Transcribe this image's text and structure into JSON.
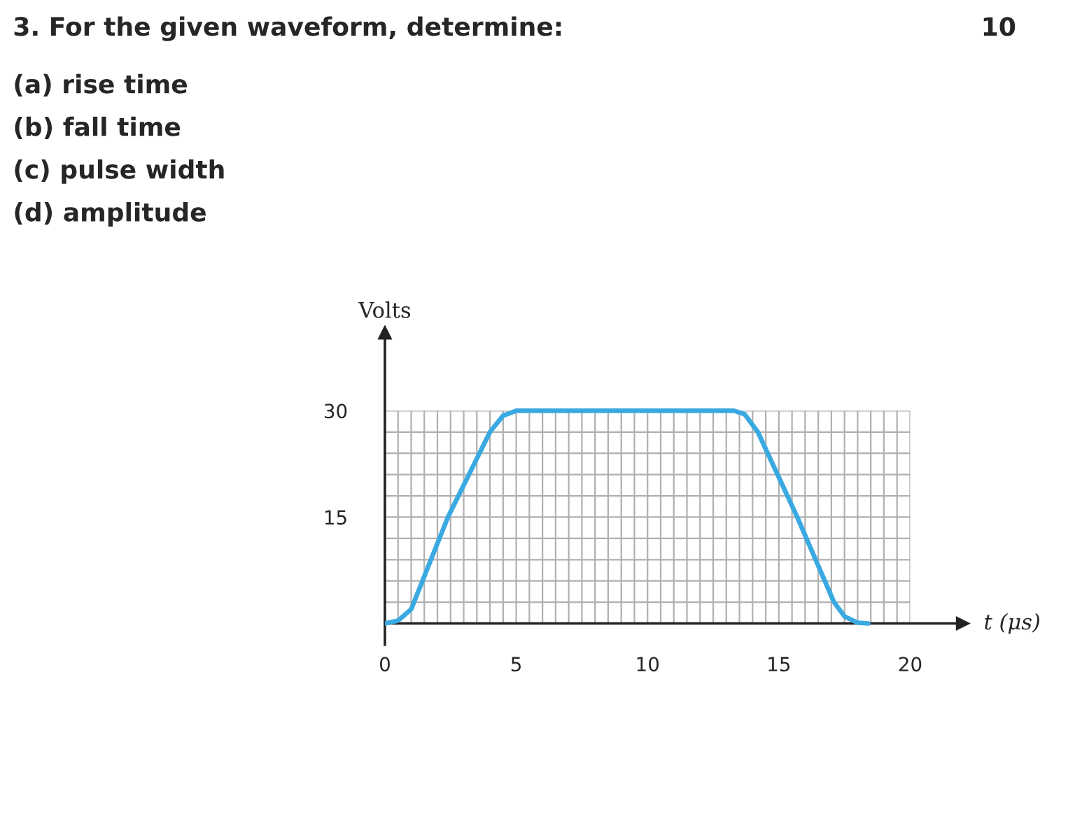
{
  "chart_data": {
    "type": "line",
    "title": "3. For the given waveform, determine:",
    "annotations": [
      "10",
      "(a) rise time",
      "(b) fall time",
      "(c) pulse width",
      "(d) amplitude"
    ],
    "xlabel": "t (μs)",
    "ylabel": "Volts",
    "series": [
      {
        "color": "#3aa9e2",
        "x": [
          0,
          0.5,
          1,
          2.4,
          4,
          4.5,
          5,
          13.3,
          13.7,
          14.2,
          15.7,
          17.1,
          17.5,
          18,
          18.4
        ],
        "values": [
          0,
          0.4,
          2,
          15,
          27,
          29.3,
          30,
          30,
          29.5,
          27,
          15,
          3,
          1,
          0.1,
          0
        ]
      }
    ],
    "xlim": [
      0,
      22
    ],
    "ylim": [
      -3,
      41
    ],
    "xticks": [
      0,
      {
        "value": 0.5,
        "label": null
      },
      {
        "value": 1,
        "label": null
      },
      {
        "value": 1.5,
        "label": null
      },
      {
        "value": 2,
        "label": null
      },
      {
        "value": 2.5,
        "label": null
      },
      {
        "value": 3,
        "label": null
      },
      {
        "value": 3.5,
        "label": null
      },
      {
        "value": 4,
        "label": null
      },
      {
        "value": 4.5,
        "label": null
      },
      5,
      {
        "value": 5.5,
        "label": null
      },
      {
        "value": 6,
        "label": null
      },
      {
        "value": 6.5,
        "label": null
      },
      {
        "value": 7,
        "label": null
      },
      {
        "value": 7.5,
        "label": null
      },
      {
        "value": 8,
        "label": null
      },
      {
        "value": 8.5,
        "label": null
      },
      {
        "value": 9,
        "label": null
      },
      {
        "value": 9.5,
        "label": null
      },
      10,
      {
        "value": 10.5,
        "label": null
      },
      {
        "value": 11,
        "label": null
      },
      {
        "value": 11.5,
        "label": null
      },
      {
        "value": 12,
        "label": null
      },
      {
        "value": 12.5,
        "label": null
      },
      {
        "value": 13,
        "label": null
      },
      {
        "value": 13.5,
        "label": null
      },
      {
        "value": 14,
        "label": null
      },
      {
        "value": 14.5,
        "label": null
      },
      15,
      {
        "value": 15.5,
        "label": null
      },
      {
        "value": 16,
        "label": null
      },
      {
        "value": 16.5,
        "label": null
      },
      {
        "value": 17,
        "label": null
      },
      {
        "value": 17.5,
        "label": null
      },
      {
        "value": 18,
        "label": null
      },
      {
        "value": 18.5,
        "label": null
      },
      {
        "value": 19,
        "label": null
      },
      {
        "value": 19.5,
        "label": null
      },
      20
    ],
    "yticks": [
      {
        "value": 3,
        "label": null
      },
      {
        "value": 6,
        "label": null
      },
      {
        "value": 9,
        "label": null
      },
      {
        "value": 12,
        "label": null
      },
      15,
      {
        "value": 18,
        "label": null
      },
      {
        "value": 21,
        "label": null
      },
      {
        "value": 24,
        "label": null
      },
      {
        "value": 27,
        "label": null
      },
      30
    ],
    "grid": true,
    "marker": "none",
    "line_style": "solid"
  }
}
